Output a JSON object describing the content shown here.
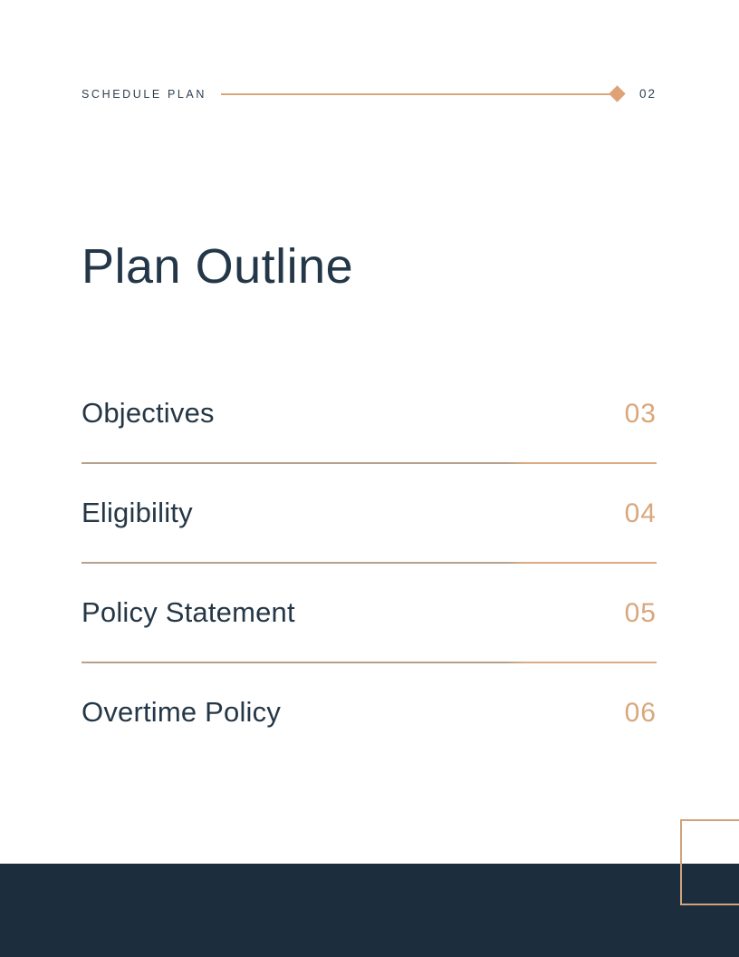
{
  "header": {
    "label": "SCHEDULE PLAN",
    "page_number": "02"
  },
  "title": "Plan Outline",
  "toc": [
    {
      "label": "Objectives",
      "page": "03"
    },
    {
      "label": "Eligibility",
      "page": "04"
    },
    {
      "label": "Policy Statement",
      "page": "05"
    },
    {
      "label": "Overtime Policy",
      "page": "06"
    }
  ],
  "colors": {
    "accent": "#D9A77C",
    "accent_light": "#DCAB81",
    "accent_muted": "#B5A28B",
    "navy_text": "#243748",
    "footer_navy": "#1C2D3E"
  }
}
